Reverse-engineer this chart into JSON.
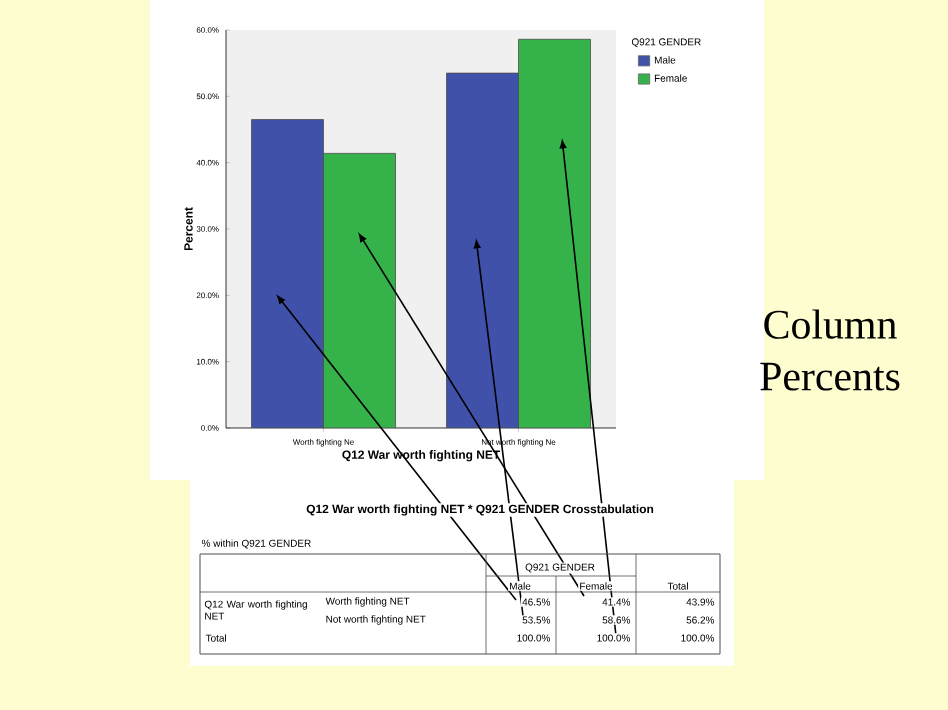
{
  "chart_data": {
    "type": "bar",
    "xlabel": "Q12 War worth fighting NET",
    "ylabel": "Percent",
    "legend_title": "Q921 GENDER",
    "categories": [
      "Worth fighting Ne",
      "Not worth fighting Ne"
    ],
    "series": [
      {
        "name": "Male",
        "color": "#3f51a8",
        "values": [
          46.5,
          53.5
        ]
      },
      {
        "name": "Female",
        "color": "#35b34a",
        "values": [
          41.4,
          58.6
        ]
      }
    ],
    "ylim": [
      0,
      60
    ],
    "yticks": [
      {
        "value": 0,
        "label": "0.0%"
      },
      {
        "value": 10,
        "label": "10.0%"
      },
      {
        "value": 20,
        "label": "20.0%"
      },
      {
        "value": 30,
        "label": "30.0%"
      },
      {
        "value": 40,
        "label": "40.0%"
      },
      {
        "value": 50,
        "label": "50.0%"
      },
      {
        "value": 60,
        "label": "60.0%"
      }
    ],
    "legend": "top right",
    "annotations": [
      "Q12 War worth fighting NET * Q921 GENDER Crosstabulation",
      "% within Q921 GENDER",
      "Q921 GENDER",
      "Male",
      "Female",
      "Total",
      "Q12 War worth fighting NET",
      "Worth fighting NET",
      "46.5%",
      "41.4%",
      "43.9%",
      "Not worth fighting NET",
      "53.5%",
      "58.6%",
      "56.2%",
      "Total",
      "100.0%",
      "100.0%",
      "100.0%",
      "Column Percents"
    ]
  }
}
